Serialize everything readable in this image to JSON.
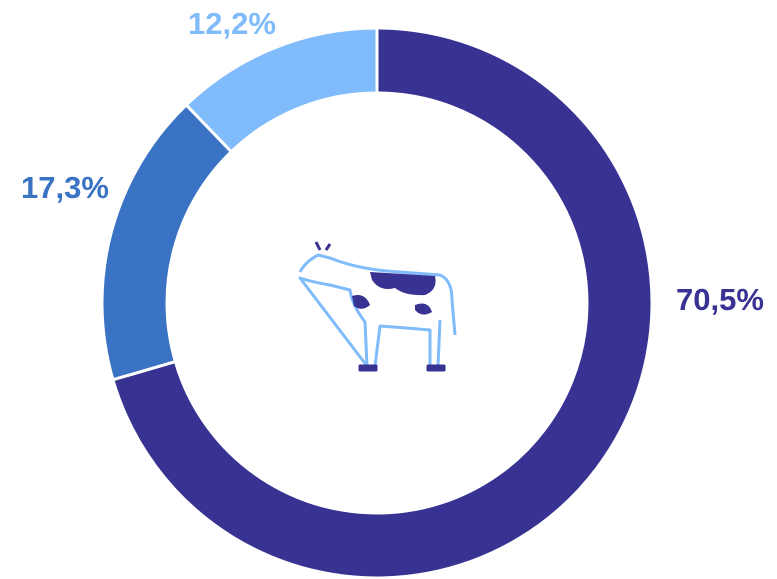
{
  "chart_data": {
    "type": "donut",
    "series": [
      {
        "values": [
          70.5,
          17.3,
          12.2
        ],
        "value_labels": [
          "70,5%",
          "17,3%",
          "12,2%"
        ],
        "colors": [
          "#383292",
          "#3a72c4",
          "#80bbfb"
        ]
      }
    ]
  }
}
